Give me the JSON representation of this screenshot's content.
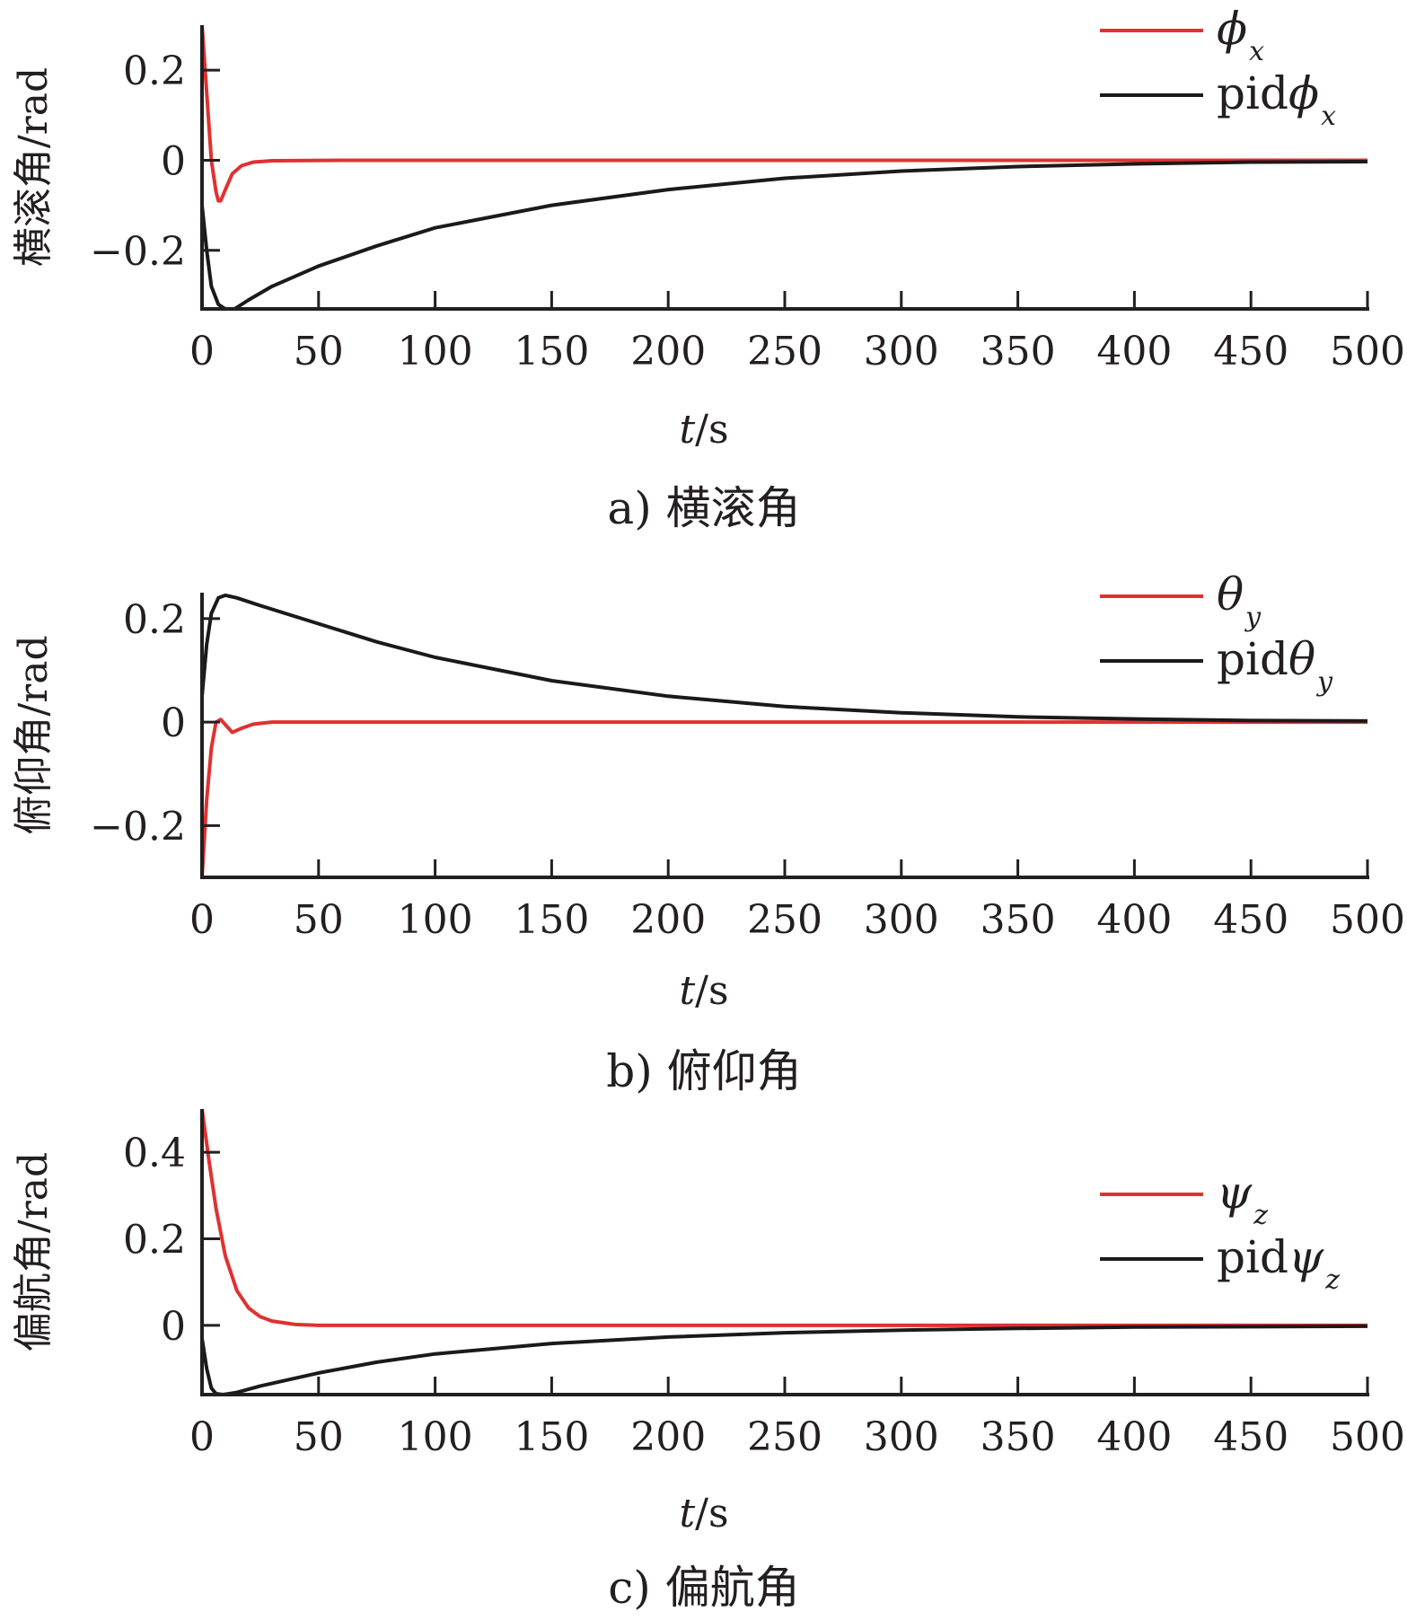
{
  "chart_data": [
    {
      "type": "line",
      "caption": "a) 横滚角",
      "xlabel_var": "t",
      "xlabel_unit": "/s",
      "ylabel": "横滚角/rad",
      "xlim": [
        0,
        500
      ],
      "ylim": [
        -0.33,
        0.3
      ],
      "xticks": [
        0,
        50,
        100,
        150,
        200,
        250,
        300,
        350,
        400,
        450,
        500
      ],
      "yticks": [
        0.2,
        0,
        -0.2
      ],
      "ytick_labels": [
        "0.2",
        "0",
        "−0.2"
      ],
      "legend_position": "top-right",
      "series": [
        {
          "name": "φx",
          "legend_prefix": "",
          "legend_symbol": "ϕ",
          "legend_sub": "x",
          "color": "#e03131",
          "points": [
            [
              0,
              0.3
            ],
            [
              2,
              0.15
            ],
            [
              4,
              0.0
            ],
            [
              6,
              -0.07
            ],
            [
              7,
              -0.09
            ],
            [
              8,
              -0.09
            ],
            [
              10,
              -0.065
            ],
            [
              13,
              -0.03
            ],
            [
              17,
              -0.012
            ],
            [
              22,
              -0.004
            ],
            [
              30,
              -0.001
            ],
            [
              60,
              0.0
            ],
            [
              500,
              0.0
            ]
          ]
        },
        {
          "name": "pidφx",
          "legend_prefix": "pid",
          "legend_symbol": "ϕ",
          "legend_sub": "x",
          "color": "#1a1a1a",
          "points": [
            [
              0,
              -0.1
            ],
            [
              2,
              -0.2
            ],
            [
              4,
              -0.28
            ],
            [
              7,
              -0.32
            ],
            [
              10,
              -0.33
            ],
            [
              14,
              -0.33
            ],
            [
              20,
              -0.31
            ],
            [
              30,
              -0.28
            ],
            [
              50,
              -0.235
            ],
            [
              75,
              -0.19
            ],
            [
              100,
              -0.15
            ],
            [
              150,
              -0.1
            ],
            [
              200,
              -0.065
            ],
            [
              250,
              -0.04
            ],
            [
              300,
              -0.024
            ],
            [
              350,
              -0.014
            ],
            [
              400,
              -0.008
            ],
            [
              450,
              -0.004
            ],
            [
              500,
              -0.003
            ]
          ]
        }
      ]
    },
    {
      "type": "line",
      "caption": "b) 俯仰角",
      "xlabel_var": "t",
      "xlabel_unit": "/s",
      "ylabel": "俯仰角/rad",
      "xlim": [
        0,
        500
      ],
      "ylim": [
        -0.3,
        0.25
      ],
      "xticks": [
        0,
        50,
        100,
        150,
        200,
        250,
        300,
        350,
        400,
        450,
        500
      ],
      "yticks": [
        0.2,
        0,
        -0.2
      ],
      "ytick_labels": [
        "0.2",
        "0",
        "−0.2"
      ],
      "legend_position": "top-right",
      "series": [
        {
          "name": "θy",
          "legend_prefix": "",
          "legend_symbol": "θ",
          "legend_sub": "y",
          "color": "#e03131",
          "points": [
            [
              0,
              -0.3
            ],
            [
              2,
              -0.15
            ],
            [
              4,
              -0.05
            ],
            [
              6,
              0.0
            ],
            [
              8,
              0.005
            ],
            [
              10,
              -0.005
            ],
            [
              13,
              -0.02
            ],
            [
              17,
              -0.012
            ],
            [
              22,
              -0.004
            ],
            [
              30,
              0.0
            ],
            [
              60,
              0.0
            ],
            [
              500,
              0.0
            ]
          ]
        },
        {
          "name": "pidθy",
          "legend_prefix": "pid",
          "legend_symbol": "θ",
          "legend_sub": "y",
          "color": "#1a1a1a",
          "points": [
            [
              0,
              0.05
            ],
            [
              2,
              0.15
            ],
            [
              4,
              0.21
            ],
            [
              7,
              0.24
            ],
            [
              10,
              0.245
            ],
            [
              15,
              0.24
            ],
            [
              25,
              0.225
            ],
            [
              50,
              0.19
            ],
            [
              75,
              0.155
            ],
            [
              100,
              0.125
            ],
            [
              150,
              0.08
            ],
            [
              200,
              0.05
            ],
            [
              250,
              0.03
            ],
            [
              300,
              0.018
            ],
            [
              350,
              0.01
            ],
            [
              400,
              0.006
            ],
            [
              450,
              0.003
            ],
            [
              500,
              0.002
            ]
          ]
        }
      ]
    },
    {
      "type": "line",
      "caption": "c) 偏航角",
      "xlabel_var": "t",
      "xlabel_unit": "/s",
      "ylabel": "偏航角/rad",
      "xlim": [
        0,
        500
      ],
      "ylim": [
        -0.16,
        0.5
      ],
      "xticks": [
        0,
        50,
        100,
        150,
        200,
        250,
        300,
        350,
        400,
        450,
        500
      ],
      "yticks": [
        0.4,
        0.2,
        0
      ],
      "ytick_labels": [
        "0.4",
        "0.2",
        "0"
      ],
      "legend_position": "right",
      "series": [
        {
          "name": "ψz",
          "legend_prefix": "",
          "legend_symbol": "ψ",
          "legend_sub": "z",
          "color": "#e03131",
          "points": [
            [
              0,
              0.5
            ],
            [
              3,
              0.38
            ],
            [
              6,
              0.27
            ],
            [
              10,
              0.16
            ],
            [
              15,
              0.08
            ],
            [
              20,
              0.04
            ],
            [
              25,
              0.02
            ],
            [
              30,
              0.01
            ],
            [
              40,
              0.002
            ],
            [
              50,
              0.0
            ],
            [
              500,
              0.0
            ]
          ]
        },
        {
          "name": "pidψz",
          "legend_prefix": "pid",
          "legend_symbol": "ψ",
          "legend_sub": "z",
          "color": "#1a1a1a",
          "points": [
            [
              0,
              -0.03
            ],
            [
              2,
              -0.1
            ],
            [
              4,
              -0.145
            ],
            [
              6,
              -0.158
            ],
            [
              9,
              -0.16
            ],
            [
              15,
              -0.155
            ],
            [
              25,
              -0.14
            ],
            [
              50,
              -0.11
            ],
            [
              75,
              -0.085
            ],
            [
              100,
              -0.066
            ],
            [
              150,
              -0.042
            ],
            [
              200,
              -0.027
            ],
            [
              250,
              -0.017
            ],
            [
              300,
              -0.011
            ],
            [
              350,
              -0.007
            ],
            [
              400,
              -0.004
            ],
            [
              450,
              -0.003
            ],
            [
              500,
              -0.002
            ]
          ]
        }
      ]
    }
  ]
}
